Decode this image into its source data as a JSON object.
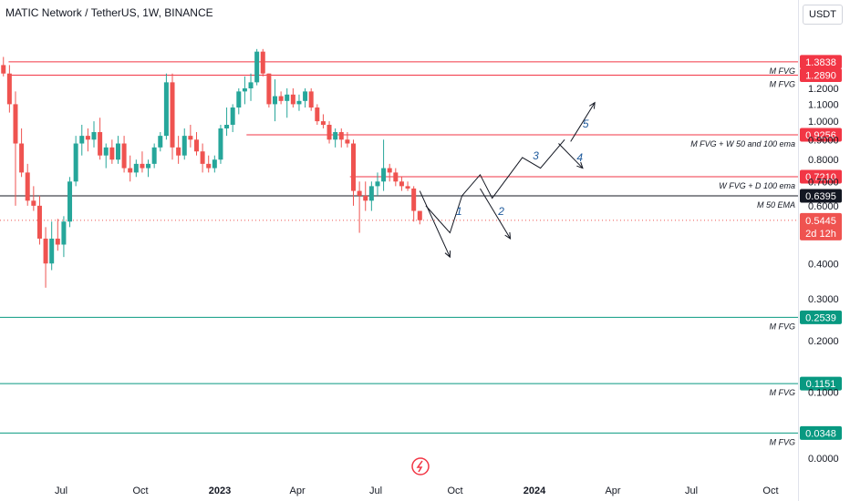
{
  "header": {
    "title": "MATIC Network / TetherUS, 1W, BINANCE",
    "currency": "USDT"
  },
  "colors": {
    "up": "#26a69a",
    "down": "#ef5350",
    "red_line": "#f23645",
    "green_line": "#089981",
    "black_line": "#131722",
    "wave": "#1e5a9c"
  },
  "chart_data": {
    "type": "candlestick",
    "price_axis": {
      "ticks": [
        0,
        0.1,
        0.2,
        0.3,
        0.4,
        0.6,
        0.7,
        0.8,
        0.9,
        1.0,
        1.1,
        1.2
      ],
      "tick_labels": [
        "0.0000",
        "0.1000",
        "0.2000",
        "0.3000",
        "0.4000",
        "0.6000",
        "0.7000",
        "0.8000",
        "0.9000",
        "1.0000",
        "1.1000",
        "1.2000"
      ]
    },
    "time_axis": {
      "labels": [
        {
          "text": "Jul",
          "bold": false,
          "date": "2022-07-01"
        },
        {
          "text": "Oct",
          "bold": false,
          "date": "2022-10-01"
        },
        {
          "text": "2023",
          "bold": true,
          "date": "2023-01-01"
        },
        {
          "text": "Apr",
          "bold": false,
          "date": "2023-04-01"
        },
        {
          "text": "Jul",
          "bold": false,
          "date": "2023-07-01"
        },
        {
          "text": "Oct",
          "bold": false,
          "date": "2023-10-01"
        },
        {
          "text": "2024",
          "bold": true,
          "date": "2024-01-01"
        },
        {
          "text": "Apr",
          "bold": false,
          "date": "2024-04-01"
        },
        {
          "text": "Jul",
          "bold": false,
          "date": "2024-07-01"
        },
        {
          "text": "Oct",
          "bold": false,
          "date": "2024-10-01"
        }
      ]
    },
    "levels": [
      {
        "price": 1.3838,
        "label": "1.3838",
        "note": "M FVG",
        "color": "red",
        "from": "2022-05-01"
      },
      {
        "price": 1.289,
        "label": "1.2890",
        "note": "M FVG",
        "color": "red",
        "from": "2022-05-01"
      },
      {
        "price": 0.9256,
        "label": "0.9256",
        "note": "M FVG + W 50 and 100 ema",
        "color": "red",
        "from": "2023-02-01"
      },
      {
        "price": 0.721,
        "label": "0.7210",
        "note": "W FVG + D 100 ema",
        "color": "red",
        "from": "2023-06-01"
      },
      {
        "price": 0.6395,
        "label": "0.6395",
        "note": "M 50 EMA",
        "color": "black",
        "from": "start"
      },
      {
        "price": 0.2539,
        "label": "0.2539",
        "note": "M FVG",
        "color": "green",
        "from": "start"
      },
      {
        "price": 0.1151,
        "label": "0.1151",
        "note": "M FVG",
        "color": "green",
        "from": "start"
      },
      {
        "price": 0.0348,
        "label": "0.0348",
        "note": "M FVG",
        "color": "green",
        "from": "start"
      }
    ],
    "last_price": {
      "price": 0.5445,
      "label": "0.5445",
      "countdown": "2d 12h"
    },
    "candles": [
      [
        "2022-04-25",
        1.36,
        1.42,
        1.28,
        1.3
      ],
      [
        "2022-05-02",
        1.3,
        1.36,
        1.05,
        1.1
      ],
      [
        "2022-05-09",
        1.1,
        1.18,
        0.6,
        0.88
      ],
      [
        "2022-05-16",
        0.88,
        0.96,
        0.72,
        0.74
      ],
      [
        "2022-05-23",
        0.74,
        0.78,
        0.6,
        0.62
      ],
      [
        "2022-05-30",
        0.62,
        0.68,
        0.58,
        0.6
      ],
      [
        "2022-06-06",
        0.6,
        0.64,
        0.46,
        0.48
      ],
      [
        "2022-06-13",
        0.48,
        0.52,
        0.33,
        0.4
      ],
      [
        "2022-06-20",
        0.4,
        0.54,
        0.38,
        0.48
      ],
      [
        "2022-06-27",
        0.48,
        0.55,
        0.44,
        0.46
      ],
      [
        "2022-07-04",
        0.46,
        0.56,
        0.42,
        0.54
      ],
      [
        "2022-07-11",
        0.54,
        0.72,
        0.52,
        0.7
      ],
      [
        "2022-07-18",
        0.7,
        0.92,
        0.68,
        0.88
      ],
      [
        "2022-07-25",
        0.88,
        0.98,
        0.82,
        0.92
      ],
      [
        "2022-08-01",
        0.92,
        0.96,
        0.84,
        0.9
      ],
      [
        "2022-08-08",
        0.9,
        1.0,
        0.86,
        0.94
      ],
      [
        "2022-08-15",
        0.94,
        1.02,
        0.8,
        0.82
      ],
      [
        "2022-08-22",
        0.82,
        0.88,
        0.76,
        0.86
      ],
      [
        "2022-08-29",
        0.86,
        0.9,
        0.78,
        0.8
      ],
      [
        "2022-09-05",
        0.8,
        0.92,
        0.78,
        0.88
      ],
      [
        "2022-09-12",
        0.88,
        0.92,
        0.74,
        0.76
      ],
      [
        "2022-09-19",
        0.76,
        0.82,
        0.7,
        0.74
      ],
      [
        "2022-09-26",
        0.74,
        0.8,
        0.72,
        0.78
      ],
      [
        "2022-10-03",
        0.78,
        0.84,
        0.74,
        0.76
      ],
      [
        "2022-10-10",
        0.76,
        0.8,
        0.72,
        0.78
      ],
      [
        "2022-10-17",
        0.78,
        0.88,
        0.76,
        0.86
      ],
      [
        "2022-10-24",
        0.86,
        0.94,
        0.84,
        0.92
      ],
      [
        "2022-10-31",
        0.92,
        1.3,
        0.9,
        1.24
      ],
      [
        "2022-11-07",
        1.24,
        1.3,
        0.8,
        0.86
      ],
      [
        "2022-11-14",
        0.86,
        0.92,
        0.78,
        0.82
      ],
      [
        "2022-11-21",
        0.82,
        0.96,
        0.8,
        0.92
      ],
      [
        "2022-11-28",
        0.92,
        0.98,
        0.86,
        0.9
      ],
      [
        "2022-12-05",
        0.9,
        0.94,
        0.82,
        0.84
      ],
      [
        "2022-12-12",
        0.84,
        0.88,
        0.74,
        0.78
      ],
      [
        "2022-12-19",
        0.78,
        0.82,
        0.74,
        0.76
      ],
      [
        "2022-12-26",
        0.76,
        0.82,
        0.74,
        0.8
      ],
      [
        "2023-01-02",
        0.8,
        0.98,
        0.78,
        0.96
      ],
      [
        "2023-01-09",
        0.96,
        1.08,
        0.92,
        0.98
      ],
      [
        "2023-01-16",
        0.98,
        1.1,
        0.94,
        1.08
      ],
      [
        "2023-01-23",
        1.08,
        1.2,
        1.04,
        1.18
      ],
      [
        "2023-01-30",
        1.18,
        1.28,
        1.1,
        1.2
      ],
      [
        "2023-02-06",
        1.2,
        1.3,
        1.12,
        1.24
      ],
      [
        "2023-02-13",
        1.24,
        1.48,
        1.22,
        1.46
      ],
      [
        "2023-02-20",
        1.46,
        1.48,
        1.28,
        1.3
      ],
      [
        "2023-02-27",
        1.3,
        1.3,
        1.08,
        1.1
      ],
      [
        "2023-03-06",
        1.1,
        1.26,
        1.0,
        1.15
      ],
      [
        "2023-03-13",
        1.15,
        1.18,
        1.1,
        1.12
      ],
      [
        "2023-03-20",
        1.12,
        1.2,
        1.02,
        1.16
      ],
      [
        "2023-03-27",
        1.16,
        1.2,
        1.08,
        1.1
      ],
      [
        "2023-04-03",
        1.1,
        1.16,
        1.06,
        1.12
      ],
      [
        "2023-04-10",
        1.12,
        1.2,
        1.08,
        1.18
      ],
      [
        "2023-04-17",
        1.18,
        1.2,
        1.06,
        1.08
      ],
      [
        "2023-04-24",
        1.08,
        1.1,
        0.98,
        1.0
      ],
      [
        "2023-05-01",
        1.0,
        1.04,
        0.96,
        0.98
      ],
      [
        "2023-05-08",
        0.98,
        1.0,
        0.88,
        0.9
      ],
      [
        "2023-05-15",
        0.9,
        0.96,
        0.86,
        0.94
      ],
      [
        "2023-05-22",
        0.94,
        0.96,
        0.86,
        0.9
      ],
      [
        "2023-05-29",
        0.9,
        0.94,
        0.86,
        0.88
      ],
      [
        "2023-06-05",
        0.88,
        0.9,
        0.6,
        0.66
      ],
      [
        "2023-06-12",
        0.66,
        0.7,
        0.5,
        0.64
      ],
      [
        "2023-06-19",
        0.64,
        0.7,
        0.58,
        0.62
      ],
      [
        "2023-06-26",
        0.62,
        0.7,
        0.58,
        0.68
      ],
      [
        "2023-07-03",
        0.68,
        0.74,
        0.64,
        0.7
      ],
      [
        "2023-07-10",
        0.7,
        0.9,
        0.66,
        0.76
      ],
      [
        "2023-07-17",
        0.76,
        0.78,
        0.7,
        0.74
      ],
      [
        "2023-07-24",
        0.74,
        0.76,
        0.68,
        0.7
      ],
      [
        "2023-07-31",
        0.7,
        0.72,
        0.66,
        0.68
      ],
      [
        "2023-08-07",
        0.68,
        0.7,
        0.66,
        0.67
      ],
      [
        "2023-08-14",
        0.67,
        0.68,
        0.54,
        0.58
      ],
      [
        "2023-08-21",
        0.58,
        0.58,
        0.53,
        0.545
      ]
    ],
    "projection": {
      "zigzag": [
        [
          "2023-08-28",
          0.6
        ],
        [
          "2023-09-25",
          0.5
        ],
        [
          "2023-10-09",
          0.64
        ],
        [
          "2023-10-30",
          0.73
        ],
        [
          "2023-11-13",
          0.63
        ],
        [
          "2023-12-18",
          0.81
        ],
        [
          "2024-01-08",
          0.76
        ],
        [
          "2024-02-05",
          0.9
        ]
      ],
      "arrows": [
        {
          "from": [
            "2023-08-21",
            0.66
          ],
          "to": [
            "2023-09-25",
            0.42
          ]
        },
        {
          "from": [
            "2023-10-30",
            0.67
          ],
          "to": [
            "2023-12-04",
            0.48
          ]
        },
        {
          "from": [
            "2024-01-29",
            0.88
          ],
          "to": [
            "2024-02-26",
            0.76
          ]
        },
        {
          "from": [
            "2024-02-12",
            0.89
          ],
          "to": [
            "2024-03-11",
            1.11
          ]
        }
      ],
      "wave_labels": [
        {
          "text": "1",
          "date": "2023-10-02",
          "price": 0.565
        },
        {
          "text": "2",
          "date": "2023-11-20",
          "price": 0.565
        },
        {
          "text": "3",
          "date": "2023-12-30",
          "price": 0.8
        },
        {
          "text": "4",
          "date": "2024-02-19",
          "price": 0.793
        },
        {
          "text": "5",
          "date": "2024-02-26",
          "price": 0.964
        }
      ]
    }
  }
}
